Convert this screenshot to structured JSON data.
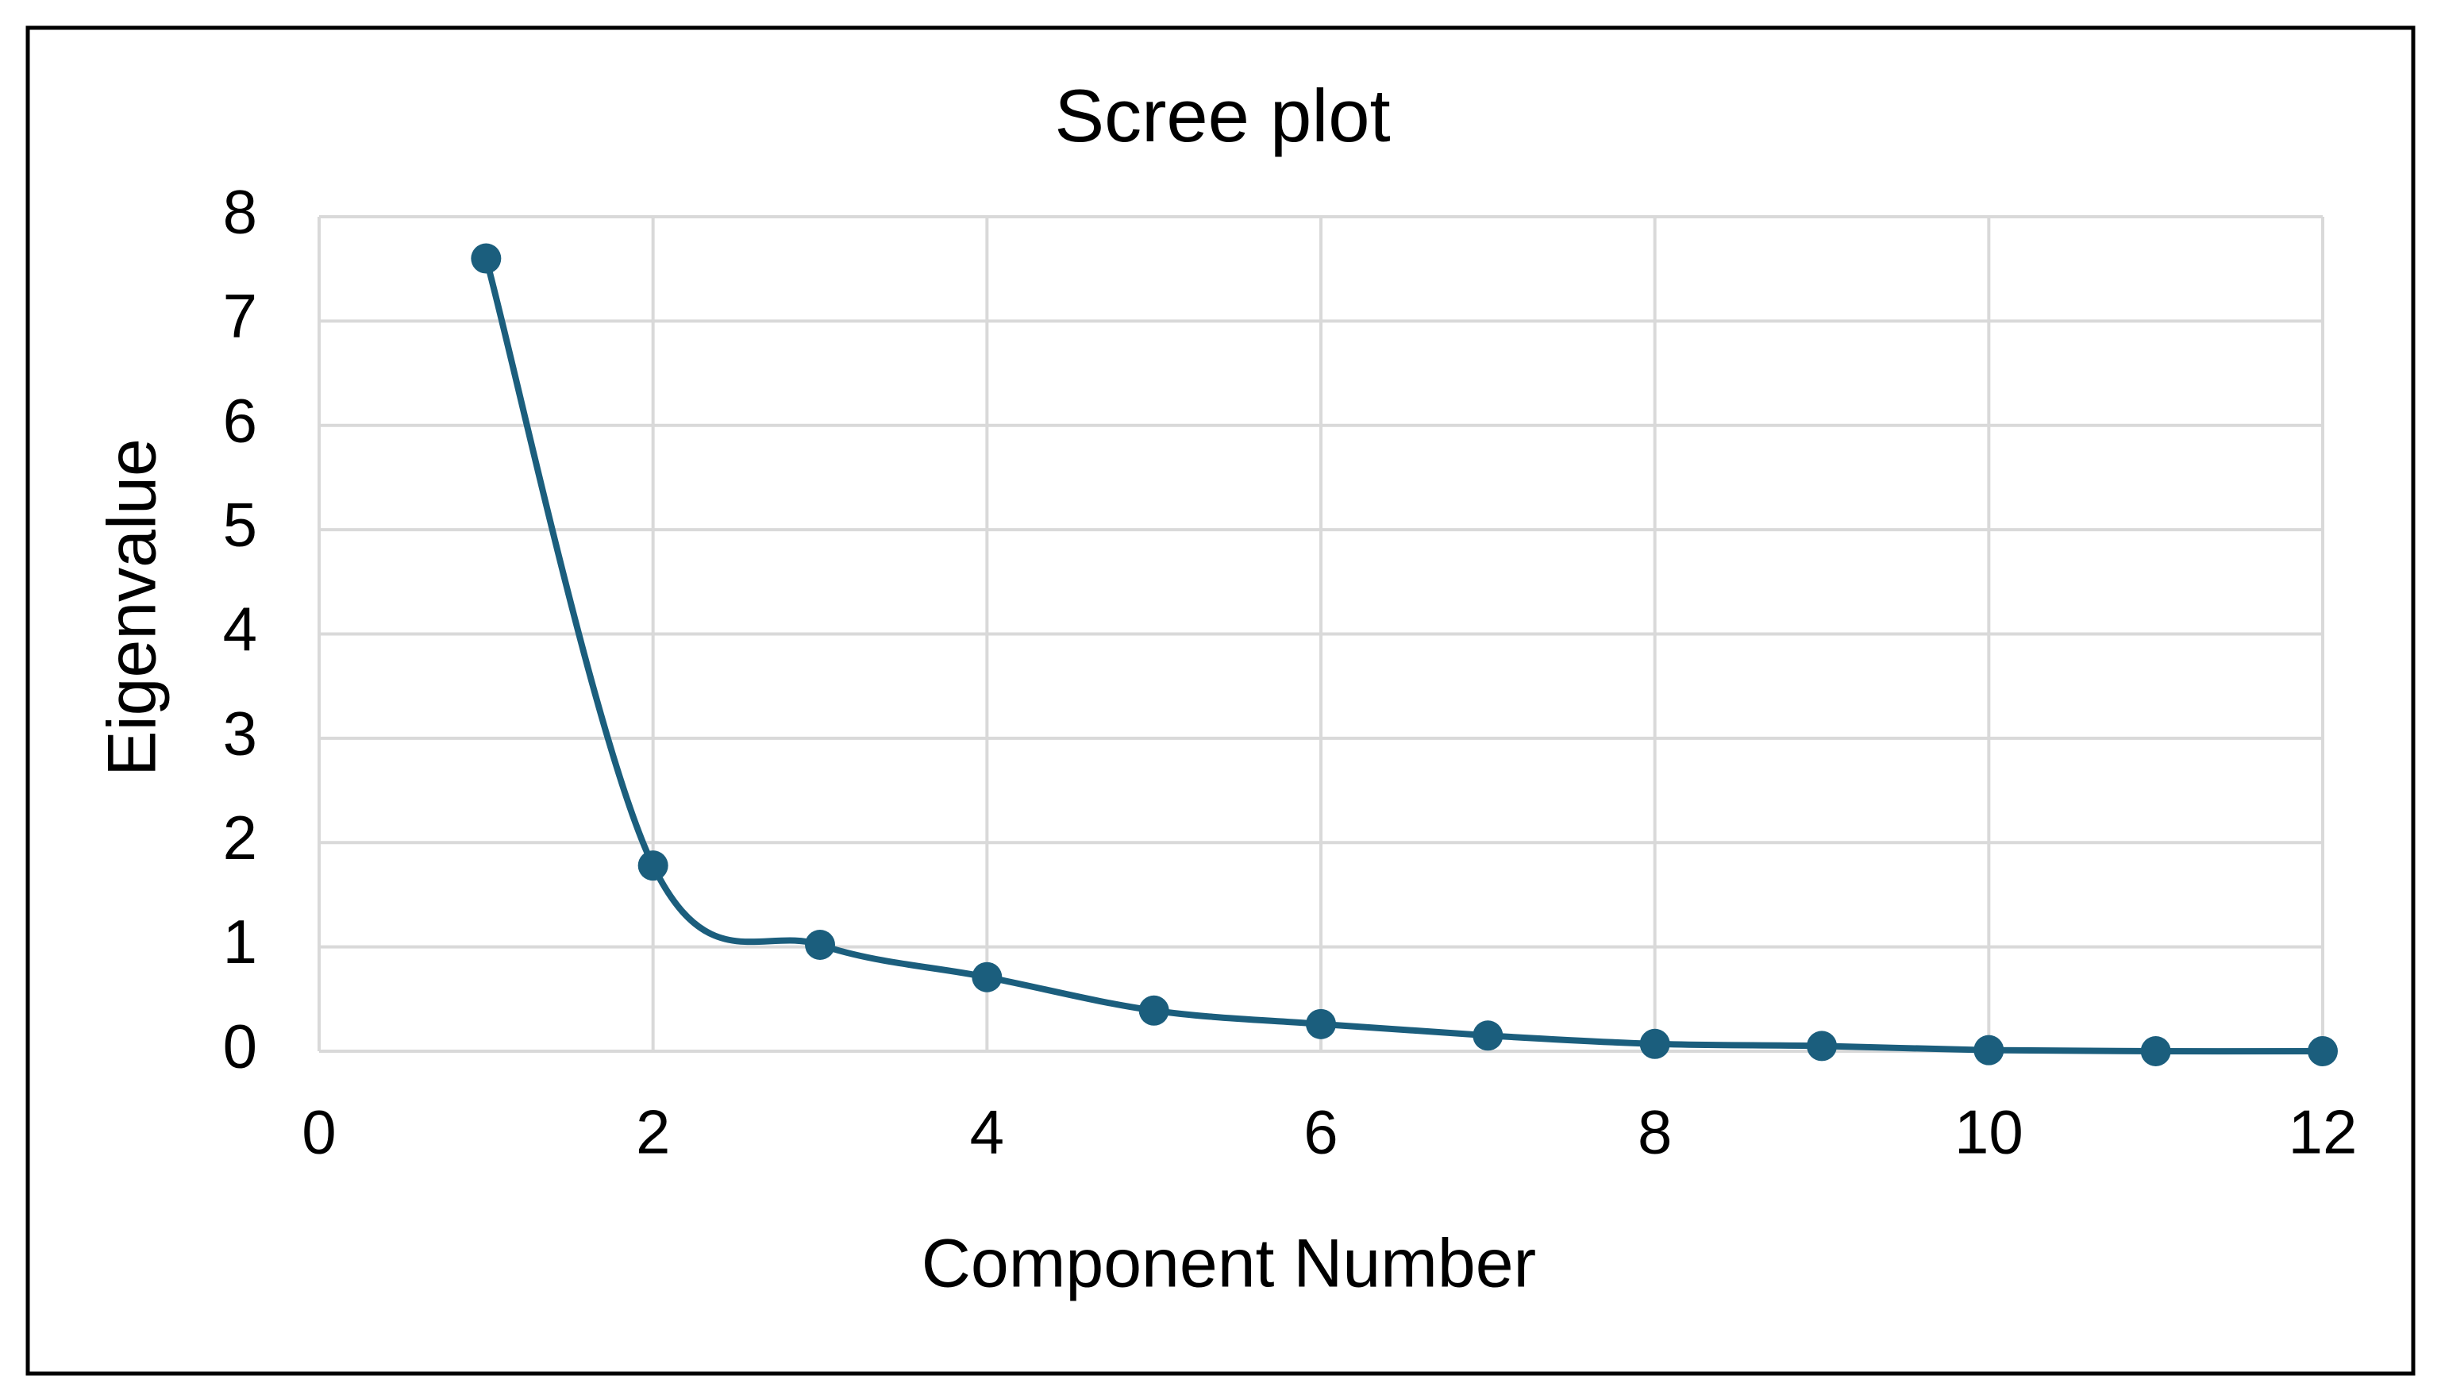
{
  "chart_data": {
    "type": "scatter",
    "title": "Scree plot",
    "x_label": "Component Number",
    "y_label": "Eigenvalue",
    "x": [
      1,
      2,
      3,
      4,
      5,
      6,
      7,
      8,
      9,
      10,
      11,
      12
    ],
    "values": [
      7.6,
      1.78,
      1.02,
      0.71,
      0.39,
      0.26,
      0.15,
      0.07,
      0.05,
      0.01,
      0.0,
      0.0
    ],
    "color": "#1b5e7d",
    "smooth": true,
    "markers": true,
    "xlim": [
      0,
      12
    ],
    "xticks": [
      0,
      2,
      4,
      6,
      8,
      10,
      12
    ],
    "ylim": [
      0,
      8
    ],
    "yticks": [
      0,
      1,
      2,
      3,
      4,
      5,
      6,
      7,
      8
    ],
    "grid": true
  }
}
